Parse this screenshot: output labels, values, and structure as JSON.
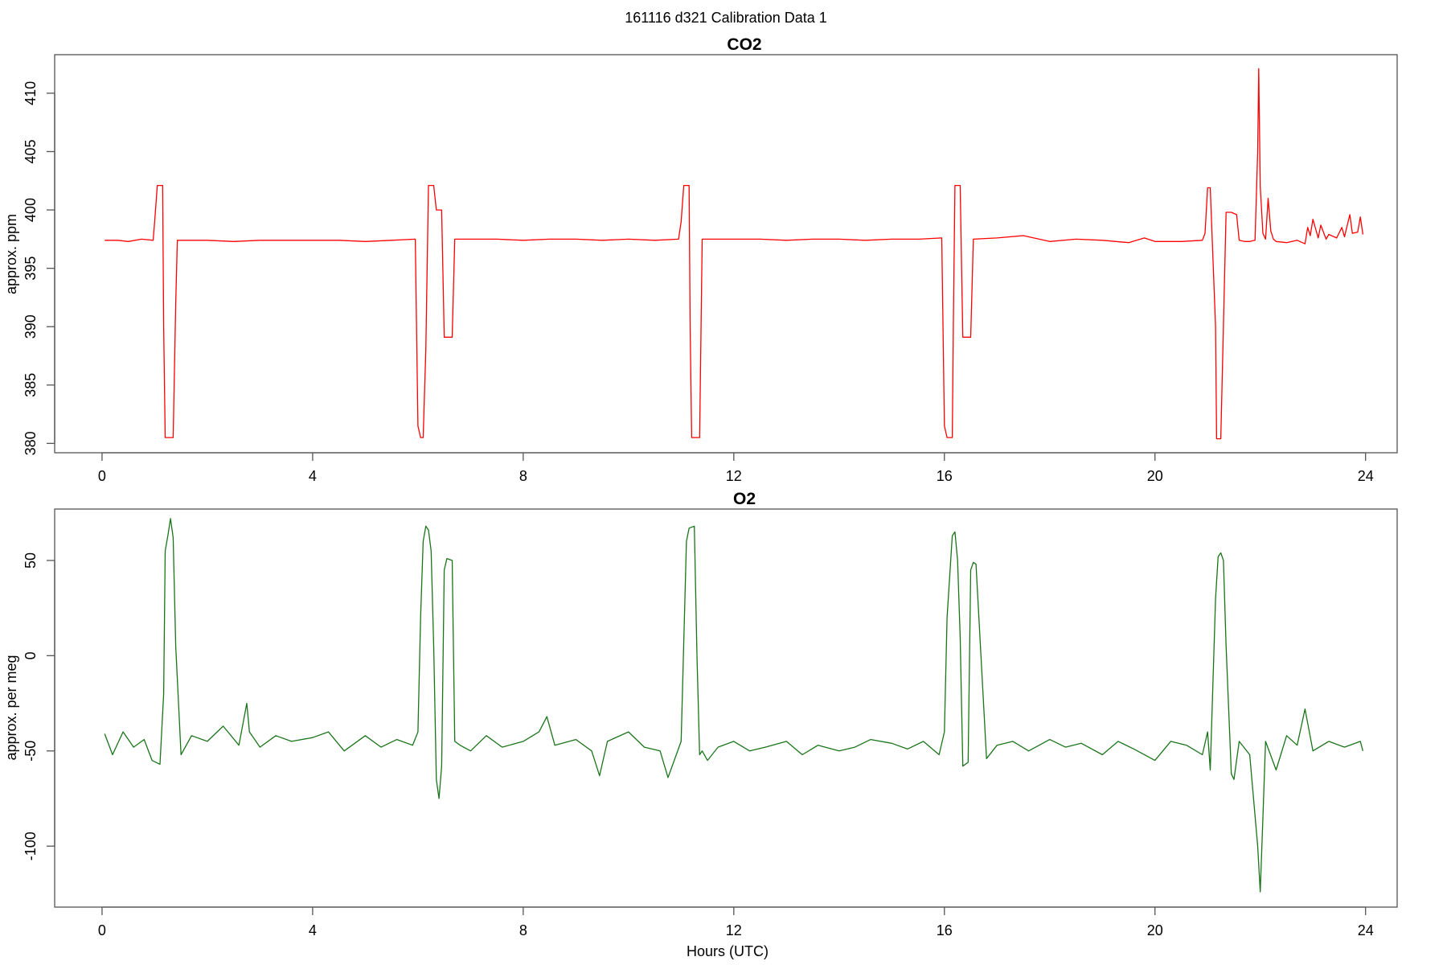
{
  "figure": {
    "suptitle": "161116   d321   Calibration Data 1",
    "xlabel": "Hours (UTC)"
  },
  "chart_data": [
    {
      "type": "line",
      "title": "CO2",
      "xlabel": "",
      "ylabel": "approx. ppm",
      "xlim": [
        -0.9,
        24.6
      ],
      "ylim": [
        379.2,
        413.3
      ],
      "xticks": [
        0,
        4,
        8,
        12,
        16,
        20,
        24
      ],
      "yticks": [
        380,
        385,
        390,
        395,
        400,
        405,
        410
      ],
      "grid": false,
      "color": "#ff0000",
      "series": [
        {
          "x": [
            0.05,
            0.3,
            0.5,
            0.75,
            0.97,
            1.0,
            1.05,
            1.15,
            1.17,
            1.2,
            1.22,
            1.3,
            1.35,
            1.4,
            1.43,
            1.5,
            2.0,
            2.5,
            3.0,
            3.5,
            4.0,
            4.5,
            5.0,
            5.5,
            5.95,
            6.0,
            6.05,
            6.1,
            6.15,
            6.2,
            6.25,
            6.3,
            6.35,
            6.45,
            6.5,
            6.55,
            6.65,
            6.7,
            6.75,
            7.0,
            7.5,
            8.0,
            8.5,
            9.0,
            9.5,
            10.0,
            10.5,
            10.95,
            11.0,
            11.05,
            11.15,
            11.17,
            11.2,
            11.25,
            11.3,
            11.35,
            11.4,
            11.45,
            11.5,
            12.0,
            12.5,
            13.0,
            13.5,
            14.0,
            14.5,
            15.0,
            15.5,
            15.95,
            16.0,
            16.05,
            16.15,
            16.17,
            16.2,
            16.25,
            16.3,
            16.35,
            16.45,
            16.5,
            16.55,
            17.0,
            17.5,
            18.0,
            18.5,
            19.0,
            19.5,
            19.8,
            20.0,
            20.5,
            20.9,
            20.95,
            21.0,
            21.05,
            21.15,
            21.17,
            21.2,
            21.25,
            21.35,
            21.4,
            21.45,
            21.55,
            21.6,
            21.7,
            21.8,
            21.9,
            21.95,
            21.97,
            22.0,
            22.05,
            22.1,
            22.15,
            22.2,
            22.25,
            22.3,
            22.5,
            22.7,
            22.85,
            22.9,
            22.95,
            23.0,
            23.1,
            23.15,
            23.25,
            23.3,
            23.45,
            23.55,
            23.6,
            23.7,
            23.75,
            23.85,
            23.9,
            23.95
          ],
          "y": [
            397.4,
            397.4,
            397.3,
            397.5,
            397.4,
            399.0,
            402.1,
            402.1,
            390.0,
            380.5,
            380.5,
            380.5,
            380.5,
            392.0,
            397.4,
            397.4,
            397.4,
            397.3,
            397.4,
            397.4,
            397.4,
            397.4,
            397.3,
            397.4,
            397.5,
            381.5,
            380.5,
            380.5,
            388.0,
            402.1,
            402.1,
            402.1,
            400.0,
            400.0,
            389.1,
            389.1,
            389.1,
            397.5,
            397.5,
            397.5,
            397.5,
            397.4,
            397.5,
            397.5,
            397.4,
            397.5,
            397.4,
            397.5,
            399.0,
            402.1,
            402.1,
            390.0,
            380.5,
            380.5,
            380.5,
            380.5,
            397.5,
            397.5,
            397.5,
            397.5,
            397.5,
            397.4,
            397.5,
            397.5,
            397.4,
            397.5,
            397.5,
            397.6,
            381.5,
            380.5,
            380.5,
            390.0,
            402.1,
            402.1,
            402.1,
            389.1,
            389.1,
            389.1,
            397.5,
            397.6,
            397.8,
            397.3,
            397.5,
            397.4,
            397.2,
            397.6,
            397.3,
            397.3,
            397.4,
            398.0,
            401.9,
            401.9,
            390.0,
            380.4,
            380.4,
            380.4,
            399.8,
            399.8,
            399.8,
            399.6,
            397.4,
            397.3,
            397.3,
            397.4,
            405.0,
            412.1,
            402.0,
            398.0,
            397.5,
            401.0,
            398.2,
            397.5,
            397.3,
            397.2,
            397.4,
            397.1,
            398.5,
            397.8,
            399.2,
            397.6,
            398.7,
            397.5,
            397.9,
            397.6,
            398.5,
            397.7,
            399.6,
            398.0,
            398.1,
            399.4,
            397.9
          ]
        }
      ]
    },
    {
      "type": "line",
      "title": "O2",
      "xlabel": "Hours (UTC)",
      "ylabel": "approx. per meg",
      "xlim": [
        -0.9,
        24.6
      ],
      "ylim": [
        -132,
        77
      ],
      "xticks": [
        0,
        4,
        8,
        12,
        16,
        20,
        24
      ],
      "yticks": [
        -100,
        -50,
        0,
        50
      ],
      "grid": false,
      "color": "#1a751a",
      "series": [
        {
          "x": [
            0.05,
            0.2,
            0.4,
            0.6,
            0.8,
            0.95,
            1.1,
            1.17,
            1.2,
            1.25,
            1.3,
            1.35,
            1.4,
            1.5,
            1.7,
            2.0,
            2.3,
            2.6,
            2.75,
            2.8,
            3.0,
            3.3,
            3.6,
            4.0,
            4.3,
            4.6,
            5.0,
            5.3,
            5.6,
            5.9,
            6.0,
            6.05,
            6.1,
            6.15,
            6.2,
            6.25,
            6.3,
            6.35,
            6.4,
            6.45,
            6.5,
            6.55,
            6.65,
            6.7,
            6.8,
            7.0,
            7.3,
            7.6,
            8.0,
            8.3,
            8.45,
            8.6,
            9.0,
            9.3,
            9.45,
            9.6,
            10.0,
            10.3,
            10.6,
            10.75,
            11.0,
            11.1,
            11.15,
            11.25,
            11.3,
            11.35,
            11.4,
            11.5,
            11.7,
            12.0,
            12.3,
            12.6,
            13.0,
            13.3,
            13.6,
            14.0,
            14.3,
            14.6,
            15.0,
            15.3,
            15.6,
            15.9,
            16.0,
            16.05,
            16.15,
            16.2,
            16.25,
            16.3,
            16.35,
            16.45,
            16.5,
            16.55,
            16.6,
            16.8,
            17.0,
            17.3,
            17.6,
            18.0,
            18.3,
            18.6,
            19.0,
            19.3,
            19.6,
            20.0,
            20.3,
            20.6,
            20.9,
            21.0,
            21.05,
            21.15,
            21.2,
            21.25,
            21.3,
            21.35,
            21.45,
            21.5,
            21.6,
            21.8,
            21.95,
            22.0,
            22.05,
            22.1,
            22.3,
            22.5,
            22.7,
            22.85,
            23.0,
            23.3,
            23.6,
            23.9,
            23.95
          ],
          "y": [
            -41,
            -52,
            -40,
            -48,
            -44,
            -55,
            -57,
            -20,
            55,
            63,
            72,
            62,
            5,
            -52,
            -42,
            -45,
            -37,
            -47,
            -25,
            -40,
            -48,
            -42,
            -45,
            -43,
            -40,
            -50,
            -42,
            -48,
            -44,
            -47,
            -40,
            20,
            60,
            68,
            66,
            55,
            5,
            -65,
            -75,
            -58,
            45,
            51,
            50,
            -45,
            -47,
            -50,
            -42,
            -48,
            -45,
            -40,
            -32,
            -47,
            -44,
            -50,
            -63,
            -45,
            -40,
            -48,
            -50,
            -64,
            -45,
            60,
            67,
            68,
            0,
            -52,
            -50,
            -55,
            -48,
            -45,
            -50,
            -48,
            -45,
            -52,
            -47,
            -50,
            -48,
            -44,
            -46,
            -49,
            -45,
            -52,
            -40,
            20,
            63,
            65,
            50,
            10,
            -58,
            -56,
            45,
            49,
            48,
            -54,
            -47,
            -45,
            -50,
            -44,
            -48,
            -46,
            -52,
            -45,
            -49,
            -55,
            -45,
            -47,
            -52,
            -40,
            -60,
            30,
            52,
            54,
            50,
            5,
            -62,
            -65,
            -45,
            -52,
            -100,
            -124,
            -85,
            -45,
            -60,
            -42,
            -47,
            -28,
            -50,
            -45,
            -48,
            -45,
            -50
          ]
        }
      ]
    }
  ]
}
